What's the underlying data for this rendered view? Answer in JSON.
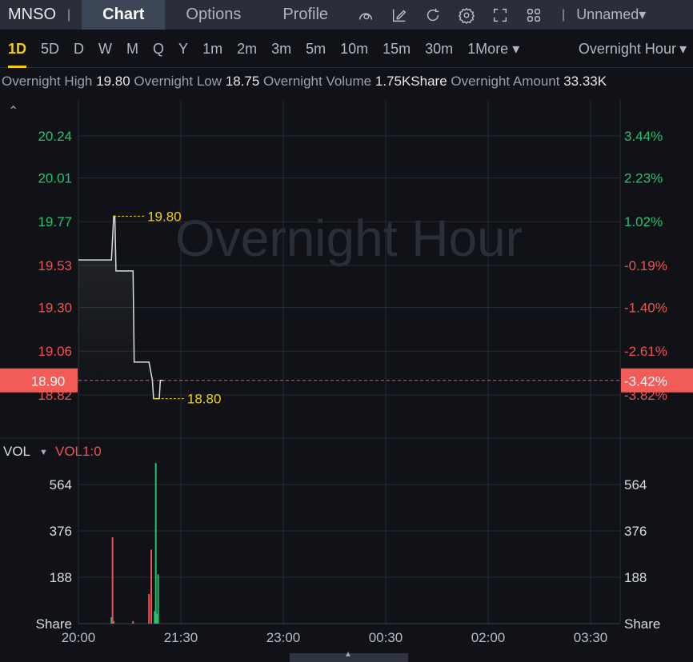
{
  "header": {
    "symbol": "MNSO",
    "tabs": [
      {
        "label": "Chart",
        "active": true
      },
      {
        "label": "Options"
      },
      {
        "label": "Profile"
      }
    ],
    "icons": [
      "indicator-icon",
      "draw-icon",
      "refresh-icon",
      "settings-icon",
      "fullscreen-icon",
      "layout-icon"
    ],
    "layout_name": "Unnamed"
  },
  "timeframes": [
    "1D",
    "5D",
    "D",
    "W",
    "M",
    "Q",
    "Y",
    "1m",
    "2m",
    "3m",
    "5m",
    "10m",
    "15m",
    "30m",
    "1More"
  ],
  "active_timeframe": "1D",
  "session": "Overnight Hour",
  "stats": [
    {
      "label": "Overnight High",
      "value": "19.80"
    },
    {
      "label": "Overnight Low",
      "value": "18.75"
    },
    {
      "label": "Overnight Volume",
      "value": "1.75KShare"
    },
    {
      "label": "Overnight Amount",
      "value": "33.33K"
    }
  ],
  "colors": {
    "up": "#25c26e",
    "down": "#f0524f",
    "highlight": "#f5d000",
    "background": "#101217"
  },
  "chart_data": [
    {
      "type": "line",
      "watermark": "Overnight Hour",
      "step": true,
      "x_ticks": [
        "20:00",
        "21:30",
        "23:00",
        "00:30",
        "02:00",
        "03:30"
      ],
      "y_ticks": [
        "20.24",
        "20.01",
        "19.77",
        "19.53",
        "19.30",
        "19.06",
        "18.82"
      ],
      "pct_ticks": [
        "3.44%",
        "2.23%",
        "1.02%",
        "-0.19%",
        "-1.40%",
        "-2.61%",
        "-3.82%"
      ],
      "ylim": [
        18.82,
        20.24
      ],
      "points": [
        {
          "t": "20:00",
          "p": 19.56
        },
        {
          "t": "20:29",
          "p": 19.56
        },
        {
          "t": "20:31",
          "p": 19.8
        },
        {
          "t": "20:32",
          "p": 19.8
        },
        {
          "t": "20:33",
          "p": 19.5
        },
        {
          "t": "20:48",
          "p": 19.5
        },
        {
          "t": "20:49",
          "p": 19.0
        },
        {
          "t": "21:02",
          "p": 19.0
        },
        {
          "t": "21:05",
          "p": 18.9
        },
        {
          "t": "21:06",
          "p": 18.8
        },
        {
          "t": "21:11",
          "p": 18.8
        },
        {
          "t": "21:12",
          "p": 18.9
        },
        {
          "t": "21:15",
          "p": 18.9
        }
      ],
      "high_label": {
        "t": "20:31",
        "value": "19.80"
      },
      "low_label": {
        "t": "21:06",
        "value": "18.80"
      },
      "current": {
        "price": "18.90",
        "pct": "-3.42%"
      }
    },
    {
      "type": "bar",
      "indicator": "VOL",
      "params": "VOL1:0",
      "y_ticks": [
        "564",
        "376",
        "188"
      ],
      "unit": "Share",
      "ylim": [
        0,
        752
      ],
      "bars": [
        {
          "t": "20:29",
          "v": 26,
          "dir": "up"
        },
        {
          "t": "20:30",
          "v": 350,
          "dir": "down"
        },
        {
          "t": "20:31",
          "v": 10,
          "dir": "down"
        },
        {
          "t": "20:48",
          "v": 10,
          "dir": "down"
        },
        {
          "t": "21:02",
          "v": 120,
          "dir": "down"
        },
        {
          "t": "21:04",
          "v": 300,
          "dir": "down"
        },
        {
          "t": "21:07",
          "v": 50,
          "dir": "up"
        },
        {
          "t": "21:08",
          "v": 651,
          "dir": "up"
        },
        {
          "t": "21:09",
          "v": 40,
          "dir": "up"
        },
        {
          "t": "21:10",
          "v": 200,
          "dir": "up"
        }
      ]
    }
  ]
}
